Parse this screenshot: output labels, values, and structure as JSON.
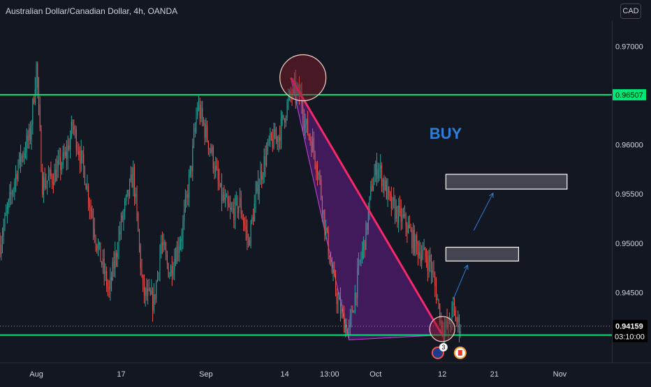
{
  "header": {
    "symbol_title": "Australian Dollar/Canadian Dollar, 4h, OANDA",
    "currency_button": "CAD"
  },
  "annotations": {
    "buy_label": "BUY",
    "event_badge_count": "3"
  },
  "colors": {
    "background": "#131722",
    "up_candle": "#26a69a",
    "down_candle": "#ef5350",
    "level_line": "#00e676",
    "trend_line": "#f5286a",
    "triangle_fill": "#7b1fa2",
    "text": "#d1d4dc",
    "box_fill": "#434651"
  },
  "chart_data": {
    "type": "candlestick",
    "instrument": "Australian Dollar/Canadian Dollar",
    "timeframe": "4h",
    "source": "OANDA",
    "y_ticks": [
      "0.97000",
      "0.96500",
      "0.96000",
      "0.95500",
      "0.95000",
      "0.94500"
    ],
    "y_tick_values": [
      0.97,
      0.965,
      0.96,
      0.955,
      0.95,
      0.945
    ],
    "ylim": [
      0.9386,
      0.972
    ],
    "x_ticks": [
      "Aug",
      "17",
      "Sep",
      "14",
      "13:00",
      "Oct",
      "12",
      "21",
      "Nov"
    ],
    "x_tick_index": [
      30,
      100,
      170,
      235,
      272,
      310,
      365,
      408,
      462
    ],
    "x_range": [
      0,
      505
    ],
    "horizontal_levels": [
      {
        "value": 0.96507,
        "label": "0.96507"
      },
      {
        "value": 0.94069,
        "label": "0.94069"
      }
    ],
    "last_price": {
      "value": 0.94159,
      "label": "0.94159",
      "countdown": "03:10:00"
    },
    "current_price_dotted": 0.94159,
    "triangle_pattern": {
      "points": [
        [
          240,
          0.9668
        ],
        [
          288,
          0.9402
        ],
        [
          365,
          0.9407
        ]
      ],
      "shaded": true
    },
    "trend_line": {
      "from": [
        240,
        0.9668
      ],
      "to": [
        365,
        0.9407
      ]
    },
    "circles": [
      {
        "x": 250,
        "y": 0.9668
      },
      {
        "x": 365,
        "y": 0.9413
      }
    ],
    "target_boxes": [
      {
        "x0": 368,
        "x1": 428,
        "y0": 0.9482,
        "y1": 0.9496
      },
      {
        "x0": 368,
        "x1": 468,
        "y0": 0.9555,
        "y1": 0.957
      }
    ],
    "arrows": [
      {
        "from": [
          374,
          0.9443
        ],
        "to": [
          386,
          0.9478
        ]
      },
      {
        "from": [
          391,
          0.9513
        ],
        "to": [
          407,
          0.9551
        ]
      }
    ],
    "anchors": [
      [
        0,
        0.95
      ],
      [
        15,
        0.958
      ],
      [
        25,
        0.961
      ],
      [
        30,
        0.968
      ],
      [
        35,
        0.956
      ],
      [
        45,
        0.957
      ],
      [
        55,
        0.959
      ],
      [
        60,
        0.962
      ],
      [
        70,
        0.957
      ],
      [
        80,
        0.95
      ],
      [
        90,
        0.945
      ],
      [
        100,
        0.952
      ],
      [
        110,
        0.957
      ],
      [
        118,
        0.945
      ],
      [
        127,
        0.944
      ],
      [
        133,
        0.95
      ],
      [
        140,
        0.947
      ],
      [
        150,
        0.951
      ],
      [
        158,
        0.958
      ],
      [
        163,
        0.964
      ],
      [
        168,
        0.962
      ],
      [
        175,
        0.959
      ],
      [
        182,
        0.955
      ],
      [
        190,
        0.953
      ],
      [
        198,
        0.954
      ],
      [
        205,
        0.95
      ],
      [
        213,
        0.956
      ],
      [
        222,
        0.96
      ],
      [
        230,
        0.961
      ],
      [
        237,
        0.964
      ],
      [
        242,
        0.9655
      ],
      [
        248,
        0.965
      ],
      [
        252,
        0.962
      ],
      [
        258,
        0.96
      ],
      [
        263,
        0.957
      ],
      [
        268,
        0.952
      ],
      [
        274,
        0.947
      ],
      [
        279,
        0.944
      ],
      [
        284,
        0.942
      ],
      [
        288,
        0.941
      ],
      [
        292,
        0.944
      ],
      [
        297,
        0.948
      ],
      [
        302,
        0.951
      ],
      [
        307,
        0.956
      ],
      [
        312,
        0.958
      ],
      [
        317,
        0.956
      ],
      [
        322,
        0.954
      ],
      [
        328,
        0.953
      ],
      [
        335,
        0.952
      ],
      [
        342,
        0.95
      ],
      [
        348,
        0.949
      ],
      [
        355,
        0.948
      ],
      [
        360,
        0.945
      ],
      [
        364,
        0.942
      ],
      [
        366,
        0.9412
      ],
      [
        370,
        0.9416
      ],
      [
        374,
        0.9433
      ],
      [
        377,
        0.942
      ],
      [
        380,
        0.9416
      ]
    ]
  }
}
